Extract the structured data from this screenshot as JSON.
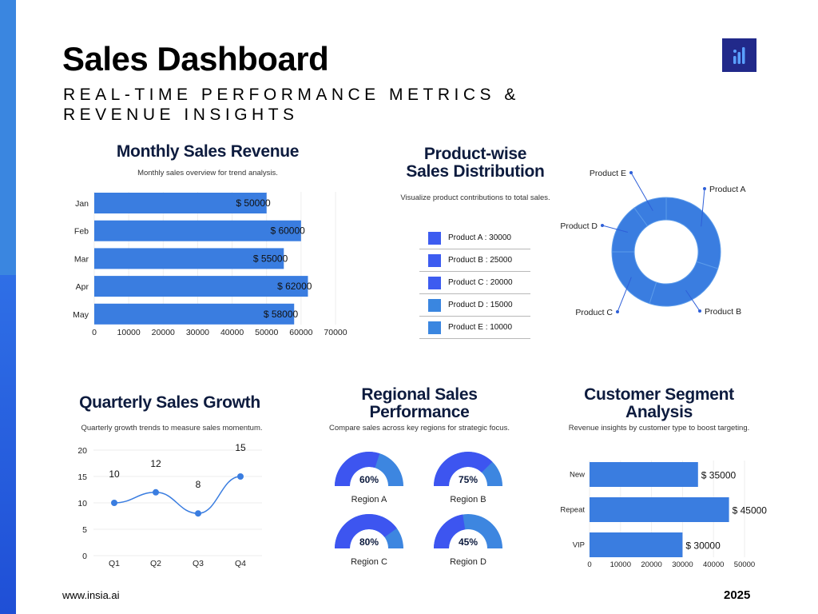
{
  "header": {
    "title": "Sales Dashboard",
    "subtitle": "REAL-TIME PERFORMANCE METRICS & REVENUE INSIGHTS"
  },
  "logo": {
    "icon": "bar-chart-icon"
  },
  "colors": {
    "bar": "#3a7de0",
    "accent": "#21298a",
    "gauge_bg": "#3d86e0",
    "gauge_fill": "#3d55f0"
  },
  "monthly": {
    "title": "Monthly Sales Revenue",
    "subtitle": "Monthly sales overview for trend analysis."
  },
  "product": {
    "title_line1": "Product-wise",
    "title_line2": "Sales Distribution",
    "subtitle": "Visualize product contributions to total sales.",
    "legend": [
      "Product A : 30000",
      "Product B : 25000",
      "Product C : 20000",
      "Product D : 15000",
      "Product E : 10000"
    ]
  },
  "quarterly": {
    "title": "Quarterly Sales Growth",
    "subtitle": "Quarterly growth trends to measure sales momentum."
  },
  "regional": {
    "title_line1": "Regional Sales",
    "title_line2": "Performance",
    "subtitle": "Compare sales across key regions for strategic focus."
  },
  "segment": {
    "title_line1": "Customer Segment",
    "title_line2": "Analysis",
    "subtitle": "Revenue insights by customer type to boost targeting."
  },
  "footer": {
    "website": "www.insia.ai",
    "year": "2025"
  },
  "chart_data": [
    {
      "type": "bar",
      "orientation": "horizontal",
      "categories": [
        "Jan",
        "Feb",
        "Mar",
        "Apr",
        "May"
      ],
      "values": [
        50000,
        60000,
        55000,
        62000,
        58000
      ],
      "data_labels": [
        "$ 50000",
        "$ 60000",
        "$ 55000",
        "$ 62000",
        "$ 58000"
      ],
      "xlim": [
        0,
        70000
      ],
      "xticks": [
        0,
        10000,
        20000,
        30000,
        40000,
        50000,
        60000,
        70000
      ],
      "title": "Monthly Sales Revenue"
    },
    {
      "type": "pie",
      "donut": true,
      "labels": [
        "Product A",
        "Product B",
        "Product C",
        "Product D",
        "Product E"
      ],
      "values": [
        30000,
        25000,
        20000,
        15000,
        10000
      ],
      "title": "Product-wise Sales Distribution"
    },
    {
      "type": "line",
      "categories": [
        "Q1",
        "Q2",
        "Q3",
        "Q4"
      ],
      "values": [
        10,
        12,
        8,
        15
      ],
      "ylim": [
        0,
        20
      ],
      "yticks": [
        0,
        5,
        10,
        15,
        20
      ],
      "title": "Quarterly Sales Growth"
    },
    {
      "type": "gauge",
      "labels": [
        "Region A",
        "Region B",
        "Region C",
        "Region D"
      ],
      "values": [
        60,
        75,
        80,
        45
      ],
      "value_labels": [
        "60%",
        "75%",
        "80%",
        "45%"
      ],
      "title": "Regional Sales Performance"
    },
    {
      "type": "bar",
      "orientation": "horizontal",
      "categories": [
        "New",
        "Repeat",
        "VIP"
      ],
      "values": [
        35000,
        45000,
        30000
      ],
      "data_labels": [
        "$ 35000",
        "$ 45000",
        "$ 30000"
      ],
      "xlim": [
        0,
        50000
      ],
      "xticks": [
        0,
        10000,
        20000,
        30000,
        40000,
        50000
      ],
      "title": "Customer Segment Analysis"
    }
  ]
}
